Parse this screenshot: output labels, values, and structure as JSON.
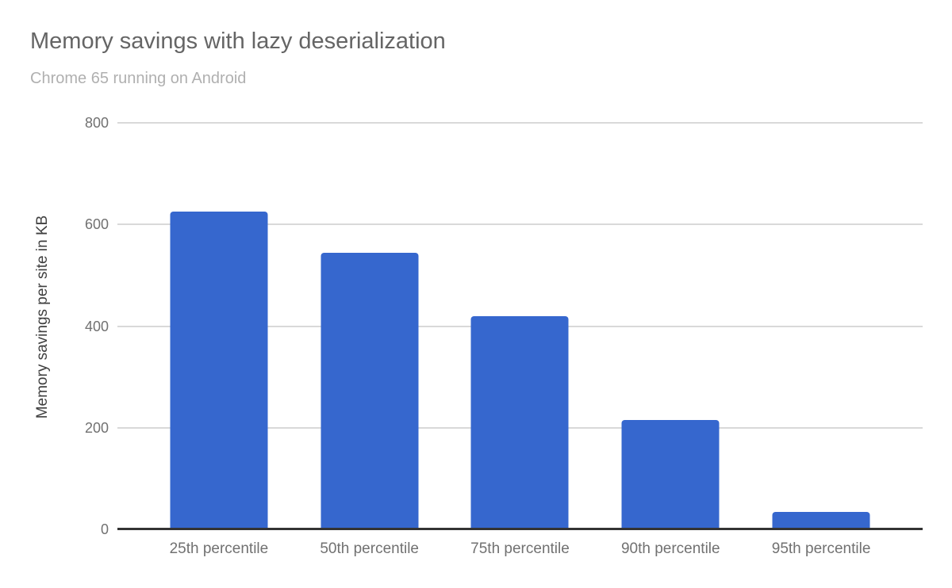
{
  "chart_data": {
    "type": "bar",
    "title": "Memory savings with lazy deserialization",
    "subtitle": "Chrome 65 running on Android",
    "categories": [
      "25th percentile",
      "50th percentile",
      "75th percentile",
      "90th percentile",
      "95th percentile"
    ],
    "values": [
      625,
      545,
      420,
      215,
      35
    ],
    "xlabel": "",
    "ylabel": "Memory savings per site in KB",
    "ylim": [
      0,
      800
    ],
    "yticks": [
      0,
      200,
      400,
      600,
      800
    ],
    "grid": true,
    "legend": "none",
    "bar_color": "#3667ce",
    "colors": {
      "title": "#656565",
      "subtitle": "#b0b0b0",
      "tick_label": "#717171",
      "axis_title": "#3f3f3f",
      "gridline": "#d9d9d9",
      "baseline": "#333333",
      "background": "#ffffff"
    }
  }
}
